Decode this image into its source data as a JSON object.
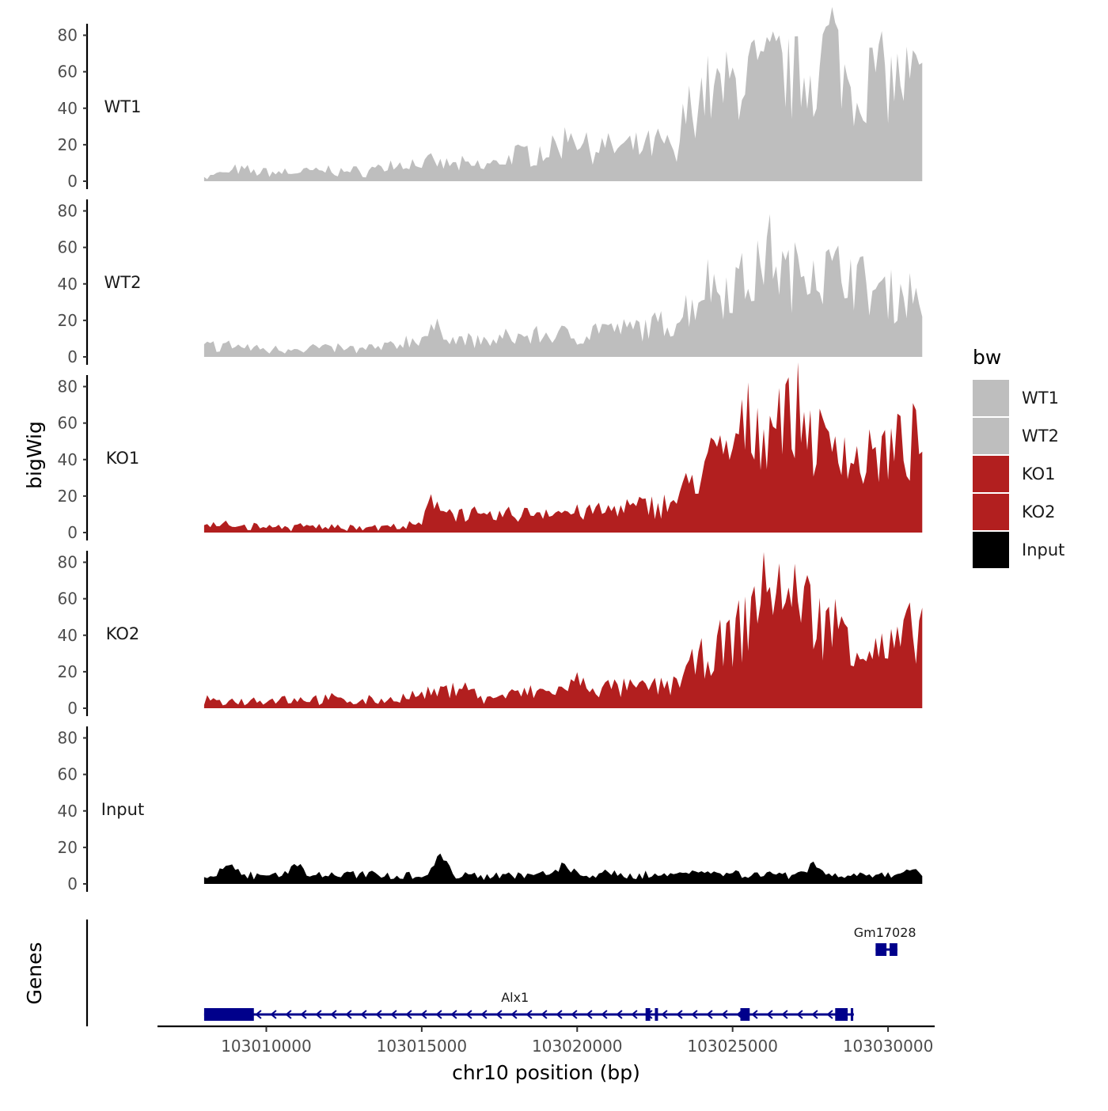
{
  "chart_data": {
    "type": "area",
    "ylabel": "bigWig",
    "genes_panel_label": "Genes",
    "xlabel": "chr10 position (bp)",
    "xlim": [
      103006500,
      103031500
    ],
    "ylim": [
      0,
      85
    ],
    "y_ticks": [
      "0",
      "20",
      "40",
      "60",
      "80"
    ],
    "x_ticks": [
      {
        "value": 103010000,
        "label": "103010000"
      },
      {
        "value": 103015000,
        "label": "103015000"
      },
      {
        "value": 103020000,
        "label": "103020000"
      },
      {
        "value": 103025000,
        "label": "103025000"
      },
      {
        "value": 103030000,
        "label": "103030000"
      }
    ],
    "legend": {
      "title": "bw",
      "position": "right",
      "entries": [
        {
          "label": "WT1",
          "color": "#bebebe"
        },
        {
          "label": "WT2",
          "color": "#bebebe"
        },
        {
          "label": "KO1",
          "color": "#b21f1f"
        },
        {
          "label": "KO2",
          "color": "#b21f1f"
        },
        {
          "label": "Input",
          "color": "#000000"
        }
      ]
    },
    "x_start": 103008000,
    "x_end": 103031100,
    "bin_size": 100,
    "series": [
      {
        "name": "WT1",
        "color": "#bebebe",
        "profile": [
          [
            103008000,
            2
          ],
          [
            103009000,
            6
          ],
          [
            103010000,
            5
          ],
          [
            103011000,
            5
          ],
          [
            103012000,
            6
          ],
          [
            103013000,
            5
          ],
          [
            103014000,
            9
          ],
          [
            103015000,
            10
          ],
          [
            103016000,
            9
          ],
          [
            103017000,
            8
          ],
          [
            103018000,
            14
          ],
          [
            103019000,
            17
          ],
          [
            103020000,
            20
          ],
          [
            103021000,
            18
          ],
          [
            103022000,
            18
          ],
          [
            103023000,
            22
          ],
          [
            103023500,
            40
          ],
          [
            103024000,
            44
          ],
          [
            103025000,
            52
          ],
          [
            103026000,
            56
          ],
          [
            103027000,
            56
          ],
          [
            103028000,
            64
          ],
          [
            103029000,
            50
          ],
          [
            103030000,
            55
          ],
          [
            103031100,
            55
          ]
        ],
        "peaks": [
          [
            103007800,
            0
          ],
          [
            103015600,
            0
          ],
          [
            103019800,
            8
          ],
          [
            103023200,
            -15
          ],
          [
            103024100,
            5
          ],
          [
            103025500,
            8
          ],
          [
            103026400,
            8
          ],
          [
            103028200,
            18
          ],
          [
            103029600,
            10
          ]
        ]
      },
      {
        "name": "WT2",
        "color": "#bebebe",
        "profile": [
          [
            103008000,
            6
          ],
          [
            103009000,
            6
          ],
          [
            103010000,
            4
          ],
          [
            103011000,
            5
          ],
          [
            103012000,
            5
          ],
          [
            103013000,
            4
          ],
          [
            103014000,
            6
          ],
          [
            103015000,
            11
          ],
          [
            103015500,
            12
          ],
          [
            103016000,
            10
          ],
          [
            103017000,
            8
          ],
          [
            103018000,
            11
          ],
          [
            103019000,
            12
          ],
          [
            103020000,
            12
          ],
          [
            103021000,
            13
          ],
          [
            103022000,
            16
          ],
          [
            103023000,
            18
          ],
          [
            103024000,
            34
          ],
          [
            103025000,
            40
          ],
          [
            103026000,
            46
          ],
          [
            103027000,
            44
          ],
          [
            103028000,
            46
          ],
          [
            103029000,
            40
          ],
          [
            103030000,
            34
          ],
          [
            103031100,
            35
          ]
        ],
        "peaks": [
          [
            103015600,
            4
          ],
          [
            103020800,
            5
          ],
          [
            103024200,
            6
          ],
          [
            103026200,
            14
          ],
          [
            103027500,
            10
          ],
          [
            103028700,
            8
          ]
        ]
      },
      {
        "name": "KO1",
        "color": "#b21f1f",
        "profile": [
          [
            103008000,
            4
          ],
          [
            103009000,
            4
          ],
          [
            103010000,
            3
          ],
          [
            103011000,
            3
          ],
          [
            103012000,
            3
          ],
          [
            103013000,
            3
          ],
          [
            103014000,
            3
          ],
          [
            103015000,
            4
          ],
          [
            103015300,
            14
          ],
          [
            103016000,
            12
          ],
          [
            103017000,
            8
          ],
          [
            103018000,
            10
          ],
          [
            103019000,
            12
          ],
          [
            103020000,
            11
          ],
          [
            103021000,
            12
          ],
          [
            103022000,
            14
          ],
          [
            103023000,
            16
          ],
          [
            103024000,
            32
          ],
          [
            103025000,
            46
          ],
          [
            103026000,
            58
          ],
          [
            103027000,
            60
          ],
          [
            103028000,
            46
          ],
          [
            103029000,
            38
          ],
          [
            103030000,
            44
          ],
          [
            103031000,
            50
          ],
          [
            103031100,
            40
          ]
        ],
        "peaks": [
          [
            103015400,
            4
          ],
          [
            103024200,
            4
          ],
          [
            103025500,
            8
          ],
          [
            103026500,
            10
          ],
          [
            103027200,
            8
          ],
          [
            103028400,
            10
          ]
        ]
      },
      {
        "name": "KO2",
        "color": "#b21f1f",
        "profile": [
          [
            103008000,
            4
          ],
          [
            103009000,
            4
          ],
          [
            103010000,
            5
          ],
          [
            103011000,
            5
          ],
          [
            103012000,
            5
          ],
          [
            103013000,
            4
          ],
          [
            103014000,
            5
          ],
          [
            103015000,
            7
          ],
          [
            103016000,
            10
          ],
          [
            103017000,
            5
          ],
          [
            103018000,
            8
          ],
          [
            103019000,
            9
          ],
          [
            103020000,
            11
          ],
          [
            103021000,
            11
          ],
          [
            103022000,
            11
          ],
          [
            103023000,
            13
          ],
          [
            103024000,
            26
          ],
          [
            103025000,
            38
          ],
          [
            103026000,
            56
          ],
          [
            103027000,
            54
          ],
          [
            103028000,
            46
          ],
          [
            103029000,
            34
          ],
          [
            103030000,
            30
          ],
          [
            103031000,
            44
          ],
          [
            103031100,
            45
          ]
        ],
        "peaks": [
          [
            103016400,
            6
          ],
          [
            103020000,
            4
          ],
          [
            103025800,
            10
          ],
          [
            103026400,
            16
          ],
          [
            103027200,
            12
          ],
          [
            103028600,
            8
          ]
        ]
      },
      {
        "name": "Input",
        "color": "#000000",
        "profile": [
          [
            103008000,
            4
          ],
          [
            103009000,
            5
          ],
          [
            103010000,
            5
          ],
          [
            103011000,
            5
          ],
          [
            103012000,
            5
          ],
          [
            103013000,
            5
          ],
          [
            103014000,
            5
          ],
          [
            103015000,
            5
          ],
          [
            103016000,
            5
          ],
          [
            103017000,
            5
          ],
          [
            103018000,
            5
          ],
          [
            103019000,
            5
          ],
          [
            103020000,
            5
          ],
          [
            103021000,
            5
          ],
          [
            103022000,
            5
          ],
          [
            103023000,
            5
          ],
          [
            103024000,
            6
          ],
          [
            103025000,
            6
          ],
          [
            103026000,
            5
          ],
          [
            103027000,
            6
          ],
          [
            103028000,
            5
          ],
          [
            103029000,
            5
          ],
          [
            103030000,
            5
          ],
          [
            103031100,
            3
          ]
        ],
        "peaks": [
          [
            103008800,
            5
          ],
          [
            103010900,
            6
          ],
          [
            103015600,
            11
          ],
          [
            103019600,
            5
          ],
          [
            103023600,
            3
          ],
          [
            103027600,
            6
          ],
          [
            103030800,
            4
          ]
        ]
      }
    ],
    "genes": [
      {
        "name": "Alx1",
        "strand": "-",
        "start": 103008000,
        "end": 103028900,
        "row": 1,
        "label_pos": 103018000,
        "exons": [
          [
            103008000,
            103009600
          ],
          [
            103022200,
            103022350
          ],
          [
            103022500,
            103022600
          ],
          [
            103025250,
            103025550
          ],
          [
            103028300,
            103028700
          ],
          [
            103028800,
            103028880
          ]
        ]
      },
      {
        "name": "Gm17028",
        "strand": "-",
        "start": 103029600,
        "end": 103030300,
        "row": 2,
        "label_pos": 103029900,
        "exons": [
          [
            103029600,
            103029950
          ],
          [
            103030050,
            103030300
          ]
        ]
      }
    ]
  }
}
